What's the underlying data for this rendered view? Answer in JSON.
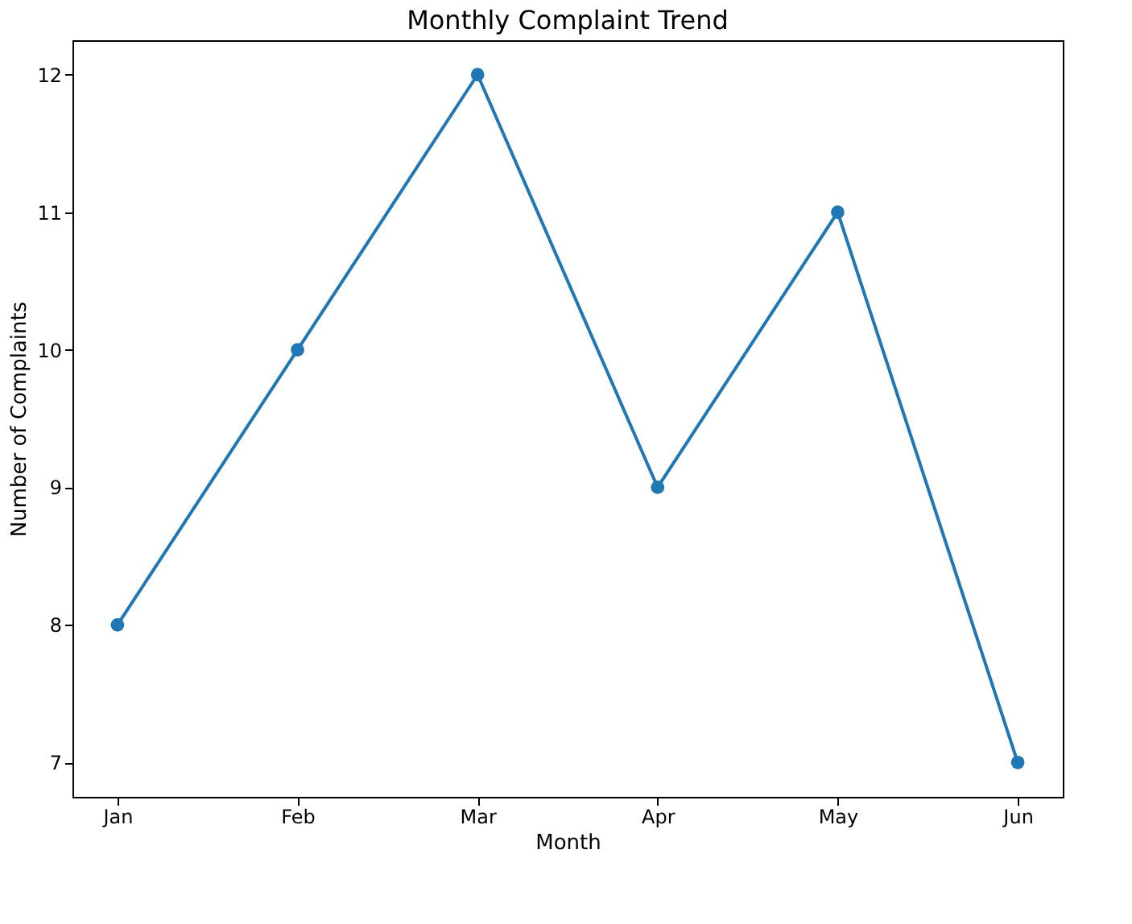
{
  "chart_data": {
    "type": "line",
    "title": "Monthly Complaint Trend",
    "xlabel": "Month",
    "ylabel": "Number of Complaints",
    "categories": [
      "Jan",
      "Feb",
      "Mar",
      "Apr",
      "May",
      "Jun"
    ],
    "series": [
      {
        "color": "#1f77b4",
        "values": [
          8,
          10,
          12,
          9,
          11,
          7
        ]
      }
    ],
    "ylim": [
      6.75,
      12.25
    ],
    "yticks": [
      7,
      8,
      9,
      10,
      11,
      12
    ],
    "grid": false,
    "marker": "circle",
    "line_style": "solid"
  }
}
